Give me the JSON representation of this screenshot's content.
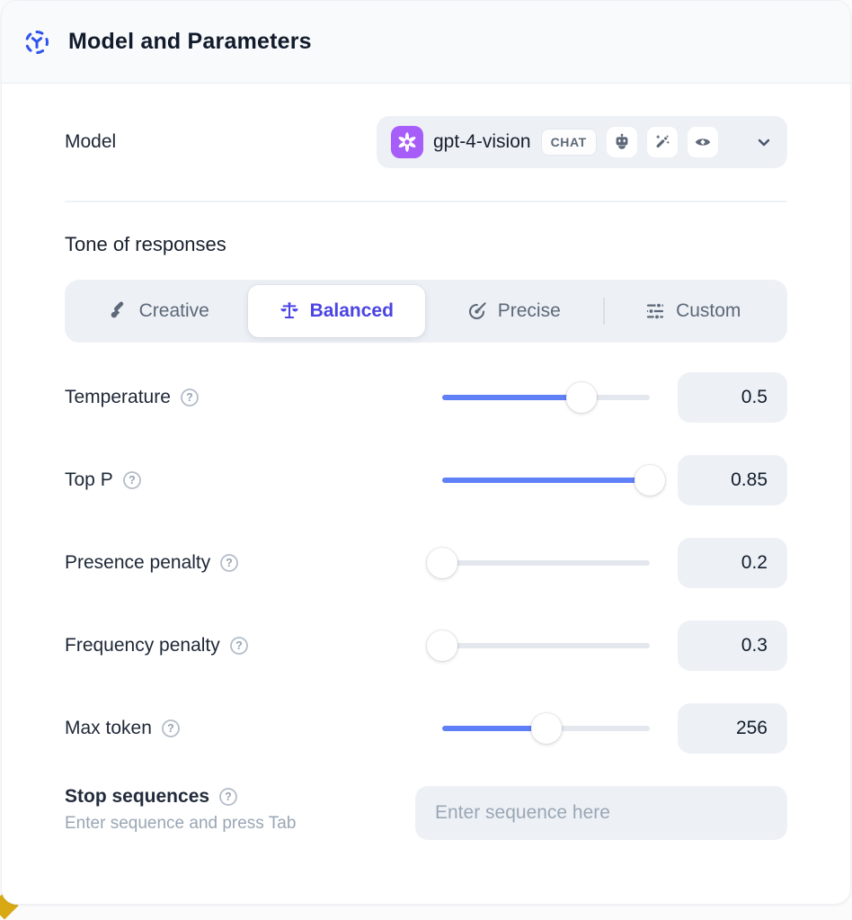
{
  "header": {
    "title": "Model and Parameters"
  },
  "model_row": {
    "label": "Model",
    "selected_model": "gpt-4-vision",
    "badge": "CHAT",
    "capability_icons": [
      "robot-icon",
      "magic-wand-icon",
      "vision-eye-icon"
    ]
  },
  "tone": {
    "heading": "Tone of responses",
    "options": [
      {
        "label": "Creative",
        "icon": "paintbrush-icon",
        "selected": false
      },
      {
        "label": "Balanced",
        "icon": "scales-icon",
        "selected": true
      },
      {
        "label": "Precise",
        "icon": "target-arrow-icon",
        "selected": false
      },
      {
        "label": "Custom",
        "icon": "sliders-icon",
        "selected": false
      }
    ]
  },
  "parameters": [
    {
      "label": "Temperature",
      "value": "0.5",
      "fill_pct": 67
    },
    {
      "label": "Top P",
      "value": "0.85",
      "fill_pct": 100
    },
    {
      "label": "Presence penalty",
      "value": "0.2",
      "fill_pct": 0
    },
    {
      "label": "Frequency penalty",
      "value": "0.3",
      "fill_pct": 0
    },
    {
      "label": "Max token",
      "value": "256",
      "fill_pct": 50
    }
  ],
  "stop_sequences": {
    "label": "Stop sequences",
    "hint": "Enter sequence and press Tab",
    "placeholder": "Enter sequence here"
  },
  "colors": {
    "accent_indigo": "#4a44e4",
    "slider_blue": "#6080f8",
    "logo_purple": "#a75df8",
    "header_icon_blue": "#2f54eb",
    "chip_bg": "#edf1f6",
    "label_dark": "#1d2736",
    "muted_gray": "#9aa6b5",
    "icon_gray": "#5d6878"
  }
}
